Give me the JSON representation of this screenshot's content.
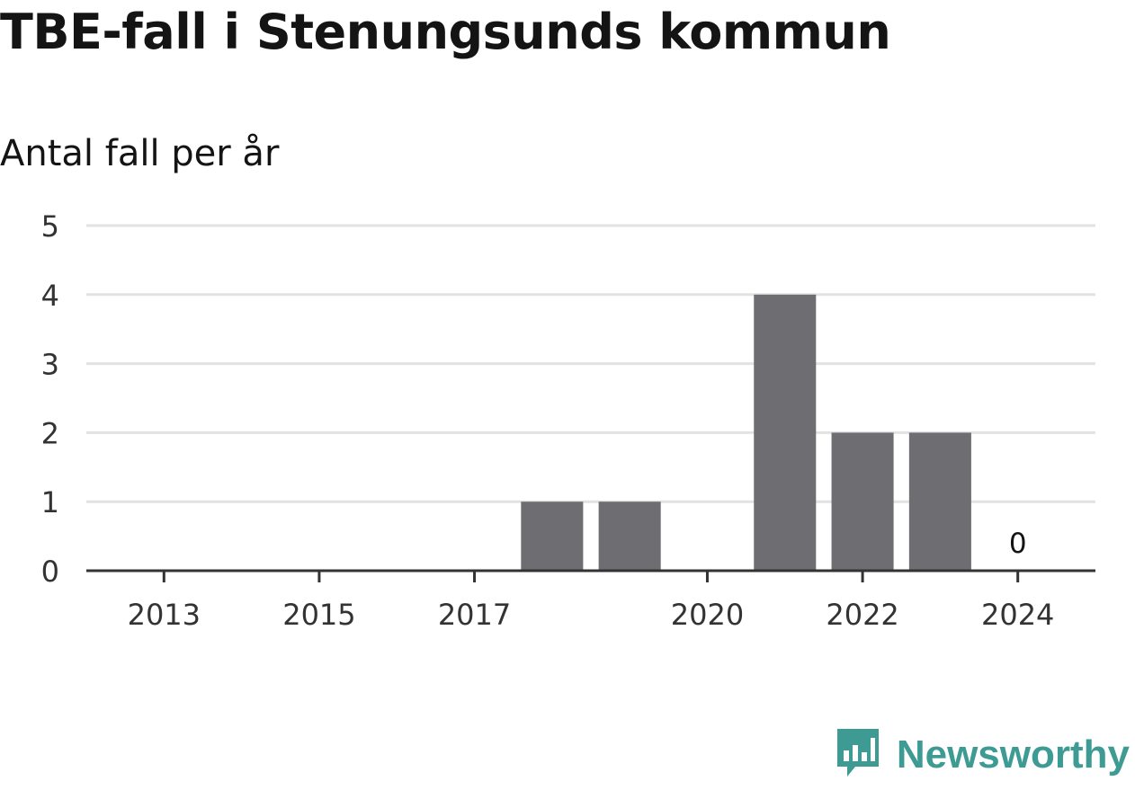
{
  "title": "TBE-fall i Stenungsunds kommun",
  "brand": {
    "name": "Newsworthy",
    "icon": "newsworthy-logo-icon",
    "color": "#3e9b94"
  },
  "colors": {
    "bar": "#6e6d72",
    "grid": "#e2e2e2",
    "axis": "#333333"
  },
  "chart_data": {
    "type": "bar",
    "title": "TBE-fall i Stenungsunds kommun",
    "ylabel": "Antal fall per år",
    "xlabel": "",
    "categories": [
      2013,
      2014,
      2015,
      2016,
      2017,
      2018,
      2019,
      2020,
      2021,
      2022,
      2023,
      2024
    ],
    "values": [
      null,
      null,
      null,
      null,
      null,
      1,
      1,
      null,
      4,
      2,
      2,
      0
    ],
    "x_ticks": [
      "2013",
      "2015",
      "2017",
      "2020",
      "2022",
      "2024"
    ],
    "ylim": [
      0,
      5
    ],
    "y_ticks": [
      "0",
      "1",
      "2",
      "3",
      "4",
      "5"
    ],
    "data_labels": [
      {
        "category": 2024,
        "text": "0"
      }
    ],
    "grid": true,
    "legend": "none"
  }
}
